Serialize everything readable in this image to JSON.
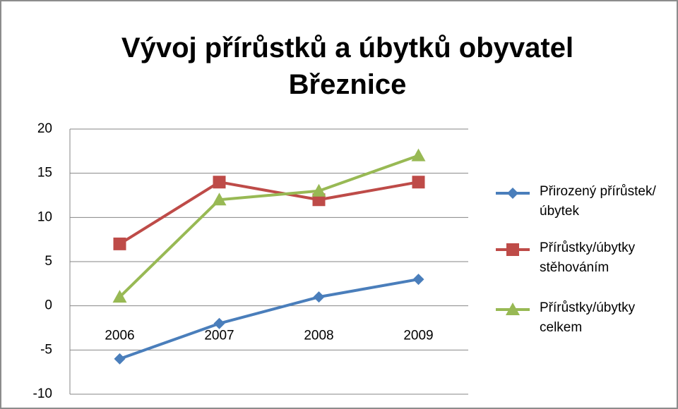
{
  "chart_data": {
    "type": "line",
    "title": "Vývoj přírůstků a úbytků obyvatel Březnice",
    "categories": [
      "2006",
      "2007",
      "2008",
      "2009"
    ],
    "series": [
      {
        "name": "Přirozený přírůstek/úbytek",
        "color": "#4a7ebb",
        "marker": "diamond",
        "values": [
          -6,
          -2,
          1,
          3
        ]
      },
      {
        "name": "Přírůstky/úbytky stěhováním",
        "color": "#be4b48",
        "marker": "square",
        "values": [
          7,
          14,
          12,
          14
        ]
      },
      {
        "name": "Přírůstky/úbytky celkem",
        "color": "#98b954",
        "marker": "triangle",
        "values": [
          1,
          12,
          13,
          17
        ]
      }
    ],
    "ylim": [
      -10,
      20
    ],
    "yticks": [
      -10,
      -5,
      0,
      5,
      10,
      15,
      20
    ],
    "grid": true,
    "legend": "right"
  }
}
